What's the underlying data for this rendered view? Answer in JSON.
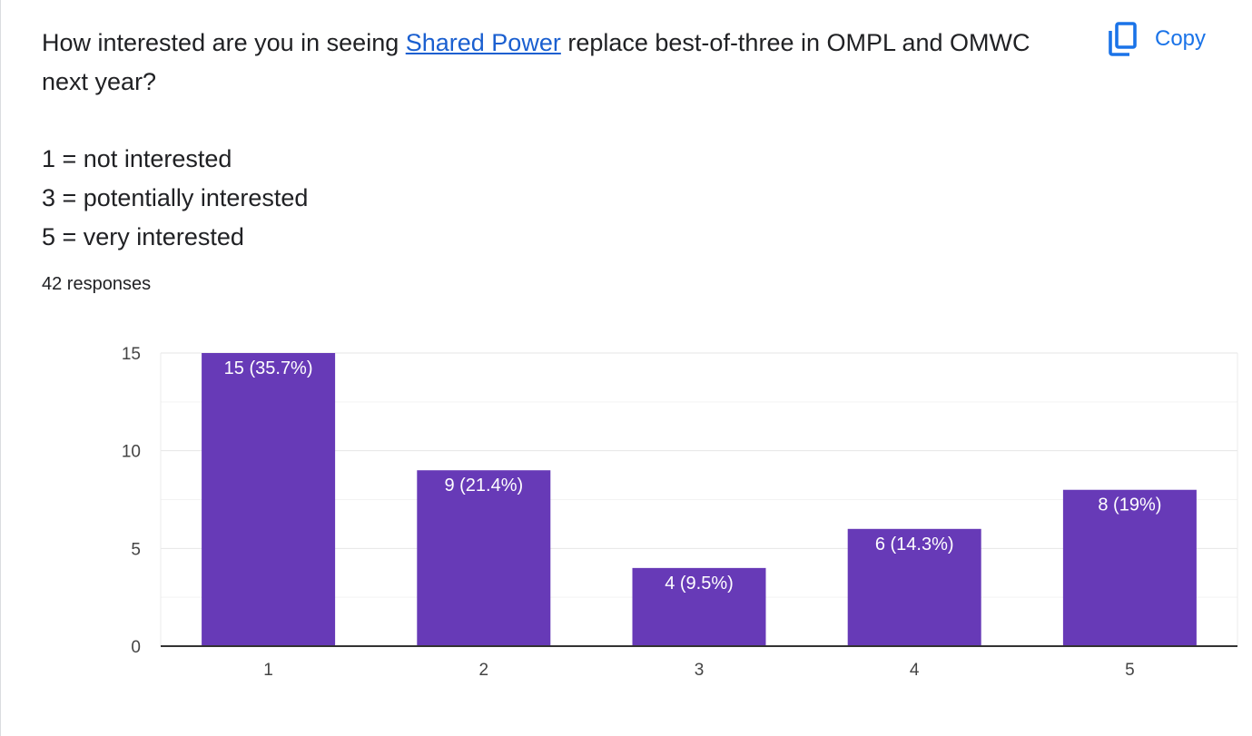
{
  "question": {
    "prefix": "How interested are you in seeing ",
    "link_text": "Shared Power",
    "suffix": " replace best-of-three in OMPL and OMWC next year?"
  },
  "scale_legend": [
    "1 = not interested",
    "3 = potentially interested",
    "5 = very interested"
  ],
  "responses_count": "42 responses",
  "copy_button": {
    "label": "Copy",
    "icon": "copy-icon",
    "color": "#1a73e8"
  },
  "colors": {
    "bar": "#673ab7",
    "link": "#1a5fd0"
  },
  "chart_data": {
    "type": "bar",
    "categories": [
      "1",
      "2",
      "3",
      "4",
      "5"
    ],
    "values": [
      15,
      9,
      4,
      6,
      8
    ],
    "data_labels": [
      "15 (35.7%)",
      "9 (21.4%)",
      "4 (9.5%)",
      "6 (14.3%)",
      "8 (19%)"
    ],
    "ylim": [
      0,
      15
    ],
    "yticks": [
      0,
      5,
      10,
      15
    ],
    "grid": true,
    "legend": "none",
    "title": "",
    "xlabel": "",
    "ylabel": ""
  }
}
